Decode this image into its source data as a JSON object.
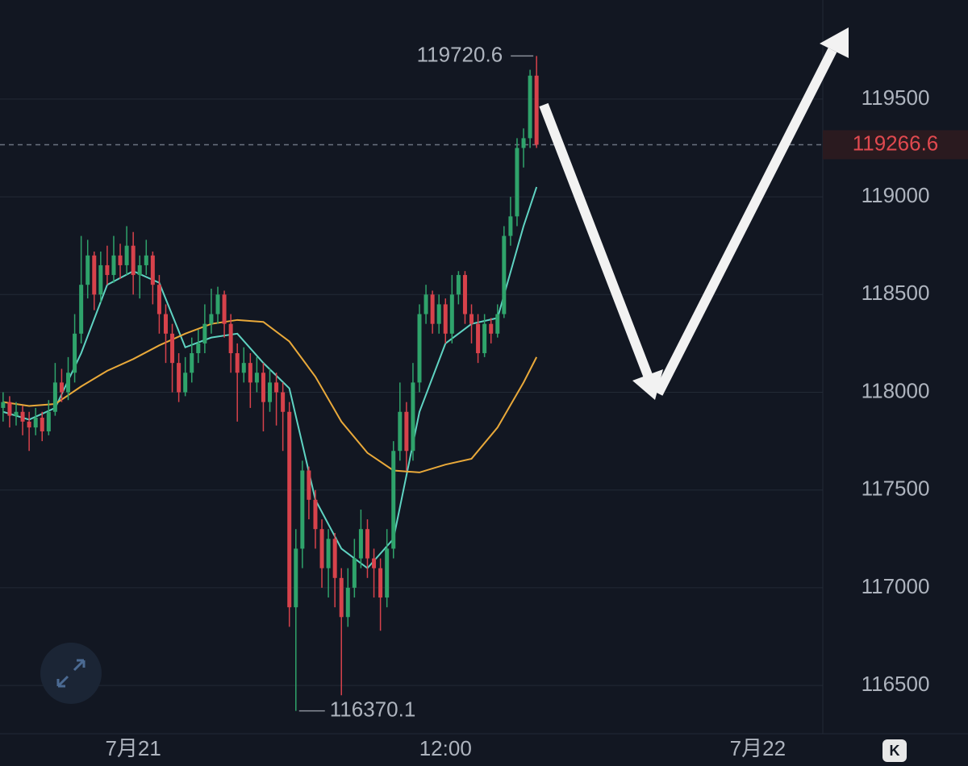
{
  "chart_data": {
    "type": "candlestick",
    "x": [
      -5,
      -4.75,
      -4.5,
      -4.25,
      -4,
      -3.75,
      -3.5,
      -3.25,
      -3,
      -2.75,
      -2.5,
      -2.25,
      -2,
      -1.75,
      -1.5,
      -1.25,
      -1,
      -0.75,
      -0.5,
      -0.25,
      0,
      0.25,
      0.5,
      0.75,
      1,
      1.25,
      1.5,
      1.75,
      2,
      2.25,
      2.5,
      2.75,
      3,
      3.25,
      3.5,
      3.75,
      4,
      4.25,
      4.5,
      4.75,
      5,
      5.25,
      5.5,
      5.75,
      6,
      6.25,
      6.5,
      6.75,
      7,
      7.25,
      7.5,
      7.75,
      8,
      8.25,
      8.5,
      8.75,
      9,
      9.25,
      9.5,
      9.75,
      10,
      10.25,
      10.5,
      10.75,
      11,
      11.25,
      11.5,
      11.75,
      12,
      12.25,
      12.5,
      12.75,
      13,
      13.25,
      13.5,
      13.75,
      14,
      14.25,
      14.5,
      14.75,
      15,
      15.25,
      15.5
    ],
    "open": [
      117920,
      117950,
      117880,
      117900,
      117850,
      117820,
      117870,
      117800,
      117900,
      118050,
      118000,
      118100,
      118300,
      118550,
      118700,
      118500,
      118650,
      118600,
      118700,
      118650,
      118750,
      118600,
      118650,
      118700,
      118550,
      118400,
      118300,
      118150,
      118000,
      118100,
      118200,
      118250,
      118350,
      118400,
      118500,
      118350,
      118200,
      118100,
      118150,
      118050,
      118100,
      117950,
      118050,
      118000,
      117900,
      116900,
      117200,
      117600,
      117450,
      117300,
      117100,
      117250,
      117050,
      116850,
      117000,
      117150,
      117300,
      117150,
      117100,
      116950,
      117200,
      117700,
      117900,
      117700,
      118050,
      118400,
      118500,
      118350,
      118450,
      118300,
      118500,
      118600,
      118400,
      118350,
      118200,
      118350,
      118300,
      118400,
      118800,
      118900,
      119250,
      119300,
      119620
    ],
    "high": [
      118000,
      117980,
      117950,
      117930,
      117900,
      117920,
      117900,
      117960,
      118150,
      118120,
      118180,
      118400,
      118800,
      118780,
      118720,
      118720,
      118750,
      118800,
      118760,
      118850,
      118820,
      118700,
      118780,
      118720,
      118600,
      118450,
      118350,
      118200,
      118180,
      118280,
      118320,
      118450,
      118530,
      118540,
      118520,
      118400,
      118250,
      118230,
      118200,
      118180,
      118150,
      118120,
      118100,
      118050,
      117950,
      117300,
      117650,
      117620,
      117500,
      117350,
      117300,
      117280,
      117100,
      117100,
      117250,
      117400,
      117350,
      117200,
      117150,
      117300,
      117750,
      118050,
      117950,
      118150,
      118450,
      118550,
      118520,
      118500,
      118480,
      118600,
      118620,
      118620,
      118450,
      118400,
      118400,
      118380,
      118450,
      118850,
      119000,
      119300,
      119350,
      119650,
      119720.6
    ],
    "low": [
      117850,
      117820,
      117830,
      117780,
      117700,
      117780,
      117750,
      117780,
      117880,
      117950,
      117960,
      118050,
      118250,
      118480,
      118420,
      118460,
      118550,
      118560,
      118580,
      118600,
      118500,
      118480,
      118600,
      118450,
      118300,
      118150,
      118000,
      117950,
      117980,
      118050,
      118150,
      118200,
      118300,
      118350,
      118280,
      118100,
      117850,
      118050,
      117920,
      118000,
      117800,
      117900,
      117830,
      117700,
      116800,
      116370.1,
      117100,
      117350,
      117200,
      117000,
      116950,
      116900,
      116450,
      116800,
      116950,
      117100,
      117050,
      116950,
      116780,
      116900,
      117150,
      117650,
      117600,
      117650,
      118000,
      118350,
      118300,
      118300,
      118250,
      118250,
      118450,
      118350,
      118250,
      118150,
      118180,
      118250,
      118280,
      118380,
      118750,
      118850,
      119150,
      119250,
      119250
    ],
    "close": [
      117950,
      117880,
      117900,
      117850,
      117820,
      117870,
      117800,
      117900,
      118050,
      118000,
      118100,
      118300,
      118550,
      118700,
      118500,
      118650,
      118600,
      118700,
      118650,
      118750,
      118600,
      118650,
      118700,
      118550,
      118400,
      118300,
      118150,
      118000,
      118100,
      118200,
      118250,
      118350,
      118400,
      118500,
      118350,
      118200,
      118100,
      118150,
      118050,
      118100,
      117950,
      118050,
      118000,
      117900,
      116900,
      117200,
      117600,
      117450,
      117300,
      117100,
      117250,
      117050,
      116850,
      117000,
      117150,
      117300,
      117150,
      117100,
      116950,
      117200,
      117700,
      117900,
      117700,
      118050,
      118400,
      118500,
      118350,
      118450,
      118300,
      118500,
      118600,
      118400,
      118350,
      118200,
      118350,
      118300,
      118400,
      118800,
      118900,
      119250,
      119300,
      119620,
      119266.6
    ],
    "up_color": "#2fa36b",
    "down_color": "#d7424b",
    "lines": [
      {
        "color": "#5fd3c2",
        "x": [
          -5,
          -4,
          -3,
          -2,
          -1,
          0,
          1,
          2,
          3,
          4,
          5,
          6,
          7,
          8,
          9,
          10,
          11,
          12,
          13,
          14,
          15,
          15.5
        ],
        "values": [
          117900,
          117860,
          117920,
          118200,
          118550,
          118620,
          118560,
          118230,
          118280,
          118300,
          118150,
          118020,
          117450,
          117200,
          117100,
          117250,
          117900,
          118250,
          118350,
          118380,
          118850,
          119050
        ]
      },
      {
        "color": "#e9a93a",
        "x": [
          -5,
          -4,
          -3,
          -2,
          -1,
          0,
          1,
          2,
          3,
          4,
          5,
          6,
          7,
          8,
          9,
          10,
          11,
          12,
          13,
          14,
          15,
          15.5
        ],
        "values": [
          117950,
          117930,
          117940,
          118030,
          118110,
          118170,
          118240,
          118300,
          118350,
          118370,
          118360,
          118260,
          118080,
          117850,
          117690,
          117600,
          117590,
          117630,
          117660,
          117820,
          118050,
          118180
        ]
      }
    ],
    "xlim": [
      -5.12,
      26.5
    ],
    "ylim": [
      116253,
      120007
    ],
    "yticks": [
      116500,
      117000,
      117500,
      118000,
      118500,
      119000,
      119500
    ],
    "xticks": [
      {
        "value": 0,
        "label": "7月21"
      },
      {
        "value": 12,
        "label": "12:00"
      },
      {
        "value": 24,
        "label": "7月22"
      }
    ],
    "grid": true,
    "current_price": 119266.6,
    "high_marker": {
      "x": 15.5,
      "value": 119720.6
    },
    "low_marker": {
      "x": 6.25,
      "value": 116370.1
    },
    "kline_button": "K"
  }
}
